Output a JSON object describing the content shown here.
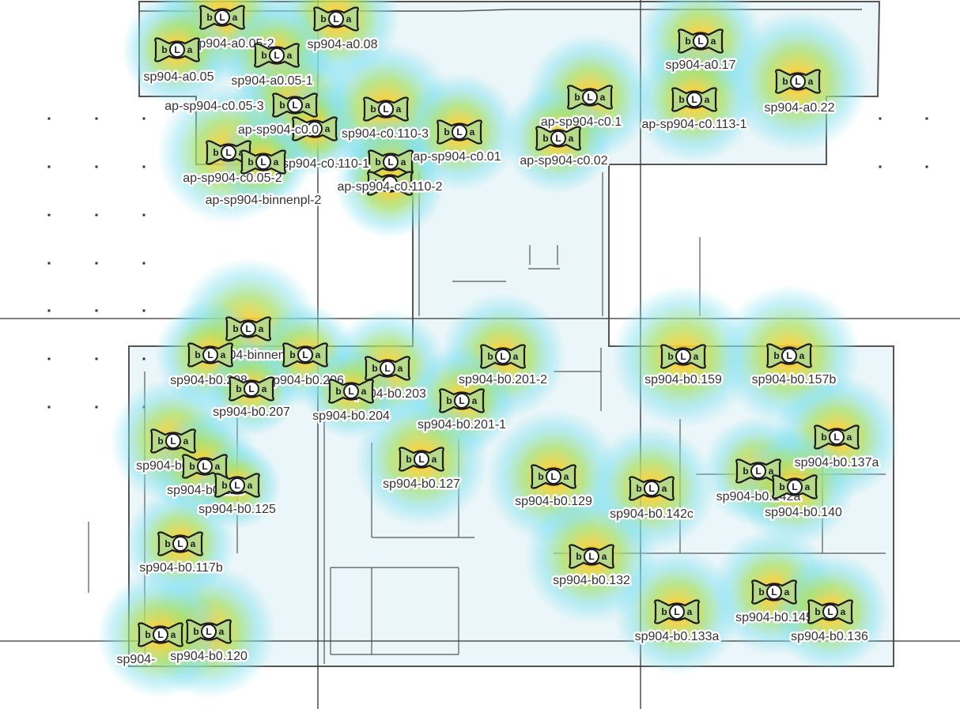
{
  "colors": {
    "floor_fill": "#eaf6f9",
    "wall": "#555555",
    "grid_line": "#333333",
    "heat_outer": "#7fe0f0",
    "heat_mid": "#a8e06a",
    "heat_core": "#f2d23a",
    "heat_center": "#ff8c1a",
    "icon_fill": "#b6d98a"
  },
  "icon": {
    "name": "access-point-icon",
    "glyph_left": "b",
    "glyph_center": "L",
    "glyph_right": "a"
  },
  "access_points": [
    {
      "id": "sp904-a0.05-2",
      "label": "sp904-a0.05-2"
    },
    {
      "id": "sp904-a0.08",
      "label": "sp904-a0.08"
    },
    {
      "id": "sp904-a0.05",
      "label": "sp904-a0.05"
    },
    {
      "id": "sp904-a0.05-1",
      "label": "sp904-a0.05-1"
    },
    {
      "id": "sp904-a0.17",
      "label": "sp904-a0.17"
    },
    {
      "id": "sp904-a0.22",
      "label": "sp904-a0.22"
    },
    {
      "id": "ap-sp904-c0.05-3",
      "label": "ap-sp904-c0.05-3"
    },
    {
      "id": "ap-sp904-c0.0",
      "label": "ap-sp904-c0.0"
    },
    {
      "id": "sp904-c0.110-3",
      "label": "sp904-c0.110-3"
    },
    {
      "id": "ap-sp904-c0.1",
      "label": "ap-sp904-c0.1"
    },
    {
      "id": "ap-sp904-c0.113-1",
      "label": "ap-sp904-c0.113-1"
    },
    {
      "id": "sp904-c0.110-1",
      "label": "sp904-c0.110-1"
    },
    {
      "id": "ap-sp904-c0.01",
      "label": "ap-sp904-c0.01"
    },
    {
      "id": "ap-sp904-c0.02",
      "label": "ap-sp904-c0.02"
    },
    {
      "id": "ap-sp904-c0.05-2",
      "label": "ap-sp904-c0.05-2"
    },
    {
      "id": "ap-sp904-c0.110-2",
      "label": "ap-sp904-c0.110-2"
    },
    {
      "id": "ap-sp904-binnenpl-2",
      "label": "ap-sp904-binnenpl-2"
    },
    {
      "id": "ap-sp904-binnenpl-1",
      "label": "ap-sp904-binnenpl-1"
    },
    {
      "id": "sp904-b0.208",
      "label": "sp904-b0.208"
    },
    {
      "id": "sp904-b0.206",
      "label": "sp904-b0.206"
    },
    {
      "id": "sp904-b0.203",
      "label": "sp904-b0.203"
    },
    {
      "id": "sp904-b0.201-2",
      "label": "sp904-b0.201-2"
    },
    {
      "id": "sp904-b0.159",
      "label": "sp904-b0.159"
    },
    {
      "id": "sp904-b0.157b",
      "label": "sp904-b0.157b"
    },
    {
      "id": "sp904-b0.207",
      "label": "sp904-b0.207"
    },
    {
      "id": "sp904-b0.204",
      "label": "sp904-b0.204"
    },
    {
      "id": "sp904-b0.201-1",
      "label": "sp904-b0.201-1"
    },
    {
      "id": "sp904-b0.209",
      "label": "sp904-b0.209"
    },
    {
      "id": "sp904-b0.137a",
      "label": "sp904-b0.137a"
    },
    {
      "id": "sp904-b0.123",
      "label": "sp904-b0.123"
    },
    {
      "id": "sp904-b0.127",
      "label": "sp904-b0.127"
    },
    {
      "id": "sp904-b0.125",
      "label": "sp904-b0.125"
    },
    {
      "id": "sp904-b0.129",
      "label": "sp904-b0.129"
    },
    {
      "id": "sp904-b0.142c",
      "label": "sp904-b0.142c"
    },
    {
      "id": "sp904-b0.142a",
      "label": "sp904-b0.142a"
    },
    {
      "id": "sp904-b0.140",
      "label": "sp904-b0.140"
    },
    {
      "id": "sp904-b0.117b",
      "label": "sp904-b0.117b"
    },
    {
      "id": "sp904-b0.132",
      "label": "sp904-b0.132"
    },
    {
      "id": "sp904-b0.145",
      "label": "sp904-b0.145"
    },
    {
      "id": "sp904-b0.133a",
      "label": "sp904-b0.133a"
    },
    {
      "id": "sp904-b0.136",
      "label": "sp904-b0.136"
    },
    {
      "id": "sp904-b0.120",
      "label": "sp904-b0.120"
    },
    {
      "id": "sp904-b0.121",
      "label": "sp904-"
    }
  ]
}
